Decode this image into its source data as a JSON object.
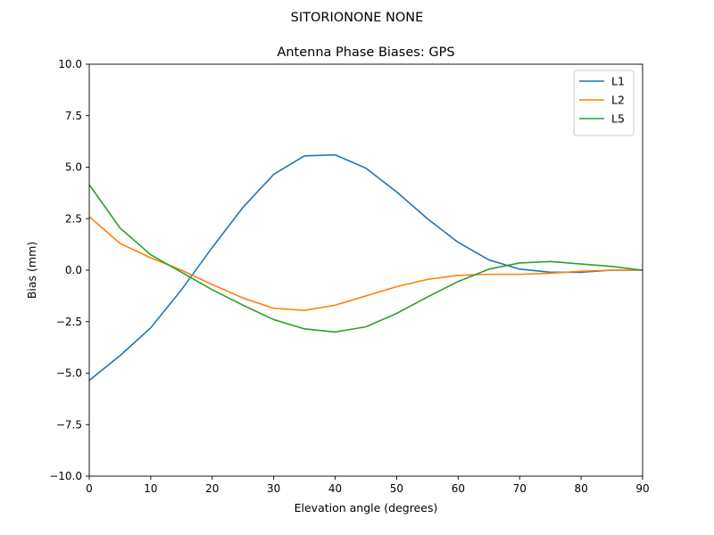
{
  "chart_data": {
    "type": "line",
    "suptitle": "SITORIONONE     NONE",
    "title": "Antenna Phase Biases: GPS",
    "xlabel": "Elevation angle (degrees)",
    "ylabel": "Bias (mm)",
    "xlim": [
      0,
      90
    ],
    "ylim": [
      -10,
      10
    ],
    "xticks": [
      0,
      10,
      20,
      30,
      40,
      50,
      60,
      70,
      80,
      90
    ],
    "yticks": [
      -10.0,
      -7.5,
      -5.0,
      -2.5,
      0.0,
      2.5,
      5.0,
      7.5,
      10.0
    ],
    "xtick_labels": [
      "0",
      "10",
      "20",
      "30",
      "40",
      "50",
      "60",
      "70",
      "80",
      "90"
    ],
    "ytick_labels": [
      "−10.0",
      "−7.5",
      "−5.0",
      "−2.5",
      "0.0",
      "2.5",
      "5.0",
      "7.5",
      "10.0"
    ],
    "grid": false,
    "legend_position": "top-right",
    "x": [
      0,
      5,
      10,
      15,
      20,
      25,
      30,
      35,
      40,
      45,
      50,
      55,
      60,
      65,
      70,
      75,
      80,
      85,
      90
    ],
    "series": [
      {
        "name": "L1",
        "color": "#1f77b4",
        "values": [
          -5.35,
          -4.15,
          -2.8,
          -0.95,
          1.1,
          3.05,
          4.65,
          5.55,
          5.6,
          4.95,
          3.8,
          2.5,
          1.35,
          0.5,
          0.05,
          -0.1,
          -0.1,
          0.0,
          0.0
        ]
      },
      {
        "name": "L2",
        "color": "#ff7f0e",
        "values": [
          2.6,
          1.3,
          0.6,
          0.0,
          -0.7,
          -1.35,
          -1.85,
          -1.95,
          -1.7,
          -1.25,
          -0.8,
          -0.45,
          -0.25,
          -0.2,
          -0.2,
          -0.15,
          -0.05,
          0.0,
          0.0
        ]
      },
      {
        "name": "L5",
        "color": "#2ca02c",
        "values": [
          4.15,
          2.05,
          0.75,
          -0.1,
          -0.95,
          -1.7,
          -2.4,
          -2.85,
          -3.0,
          -2.75,
          -2.1,
          -1.3,
          -0.55,
          0.05,
          0.35,
          0.42,
          0.3,
          0.18,
          0.0
        ]
      }
    ]
  }
}
